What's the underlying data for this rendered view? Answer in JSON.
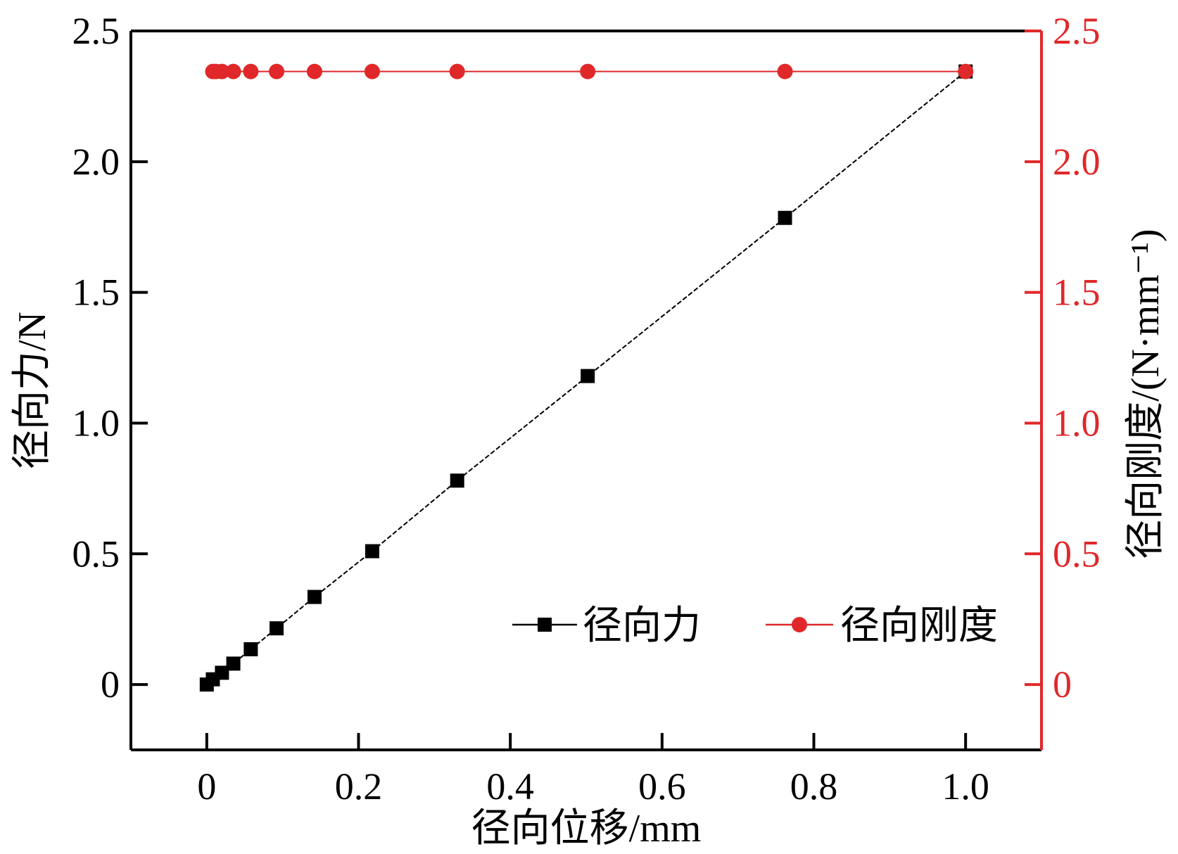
{
  "chart_data": {
    "type": "line",
    "xlabel": "径向位移/mm",
    "ylabel_left": "径向力/N",
    "ylabel_right": "径向刚度/(N·mm⁻¹)",
    "x_ticks": [
      "0",
      "0.2",
      "0.4",
      "0.6",
      "0.8",
      "1.0"
    ],
    "y_left_ticks": [
      "0",
      "0.5",
      "1.0",
      "1.5",
      "2.0",
      "2.5"
    ],
    "y_right_ticks": [
      "0",
      "0.5",
      "1.0",
      "1.5",
      "2.0",
      "2.5"
    ],
    "xlim": [
      -0.1,
      1.1
    ],
    "ylim_left": [
      -0.25,
      2.5
    ],
    "ylim_right": [
      -0.25,
      2.5
    ],
    "legend_position": "lower-right",
    "colors": {
      "axis_left": "#000000",
      "axis_right": "#e0282a"
    },
    "series": [
      {
        "name": "径向力",
        "axis": "left",
        "color": "#000000",
        "marker": "square",
        "line_style": "dashed",
        "x": [
          0,
          0.008,
          0.02,
          0.035,
          0.058,
          0.092,
          0.142,
          0.218,
          0.33,
          0.502,
          0.762,
          1.0
        ],
        "y": [
          0,
          0.02,
          0.045,
          0.08,
          0.135,
          0.215,
          0.335,
          0.51,
          0.78,
          1.18,
          1.785,
          2.345
        ]
      },
      {
        "name": "径向刚度",
        "axis": "right",
        "color": "#e0282a",
        "marker": "circle",
        "line_style": "solid",
        "x": [
          0.008,
          0.012,
          0.02,
          0.035,
          0.058,
          0.092,
          0.142,
          0.218,
          0.33,
          0.502,
          0.762,
          1.0
        ],
        "y": [
          2.345,
          2.345,
          2.345,
          2.345,
          2.345,
          2.345,
          2.345,
          2.345,
          2.345,
          2.345,
          2.345,
          2.345
        ]
      }
    ]
  }
}
